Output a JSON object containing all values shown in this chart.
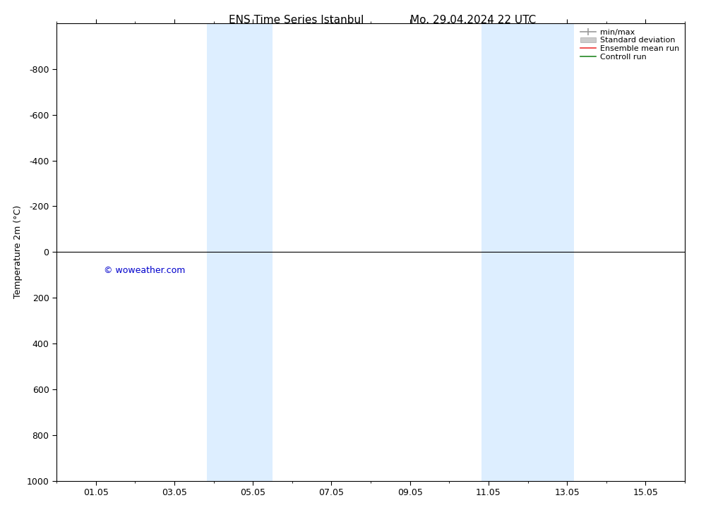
{
  "title": "ENS Time Series Istanbul",
  "title_right": "Mo. 29.04.2024 22 UTC",
  "ylabel": "Temperature 2m (°C)",
  "background_color": "#ffffff",
  "plot_bg_color": "#ffffff",
  "shaded_columns": [
    {
      "x_start": 3.83,
      "x_end": 5.5
    },
    {
      "x_start": 10.83,
      "x_end": 13.17
    }
  ],
  "shaded_color": "#ddeeff",
  "ylim_bottom": 1000,
  "ylim_top": -1000,
  "yticks": [
    -800,
    -600,
    -400,
    -200,
    0,
    200,
    400,
    600,
    800,
    1000
  ],
  "ytick_labels": [
    "-800",
    "-600",
    "-400",
    "-200",
    "0",
    "200",
    "400",
    "600",
    "800",
    "1000"
  ],
  "xtick_labels": [
    "01.05",
    "03.05",
    "05.05",
    "07.05",
    "09.05",
    "11.05",
    "13.05",
    "15.05"
  ],
  "xtick_positions": [
    1,
    3,
    5,
    7,
    9,
    11,
    13,
    15
  ],
  "x_min": 0,
  "x_max": 16,
  "zero_line_y": 0,
  "copyright_text": "© woweather.com",
  "copyright_color": "#0000cc",
  "copyright_x": 1.2,
  "copyright_y": 60,
  "legend_items": [
    {
      "label": "min/max",
      "color": "#999999",
      "lw": 1.2,
      "ls": "-",
      "type": "minmax"
    },
    {
      "label": "Standard deviation",
      "color": "#cccccc",
      "lw": 5,
      "ls": "-",
      "type": "band"
    },
    {
      "label": "Ensemble mean run",
      "color": "#ee3333",
      "lw": 1.2,
      "ls": "-",
      "type": "line"
    },
    {
      "label": "Controll run",
      "color": "#228822",
      "lw": 1.2,
      "ls": "-",
      "type": "line"
    }
  ],
  "title_fontsize": 11,
  "axis_fontsize": 9,
  "tick_fontsize": 9
}
